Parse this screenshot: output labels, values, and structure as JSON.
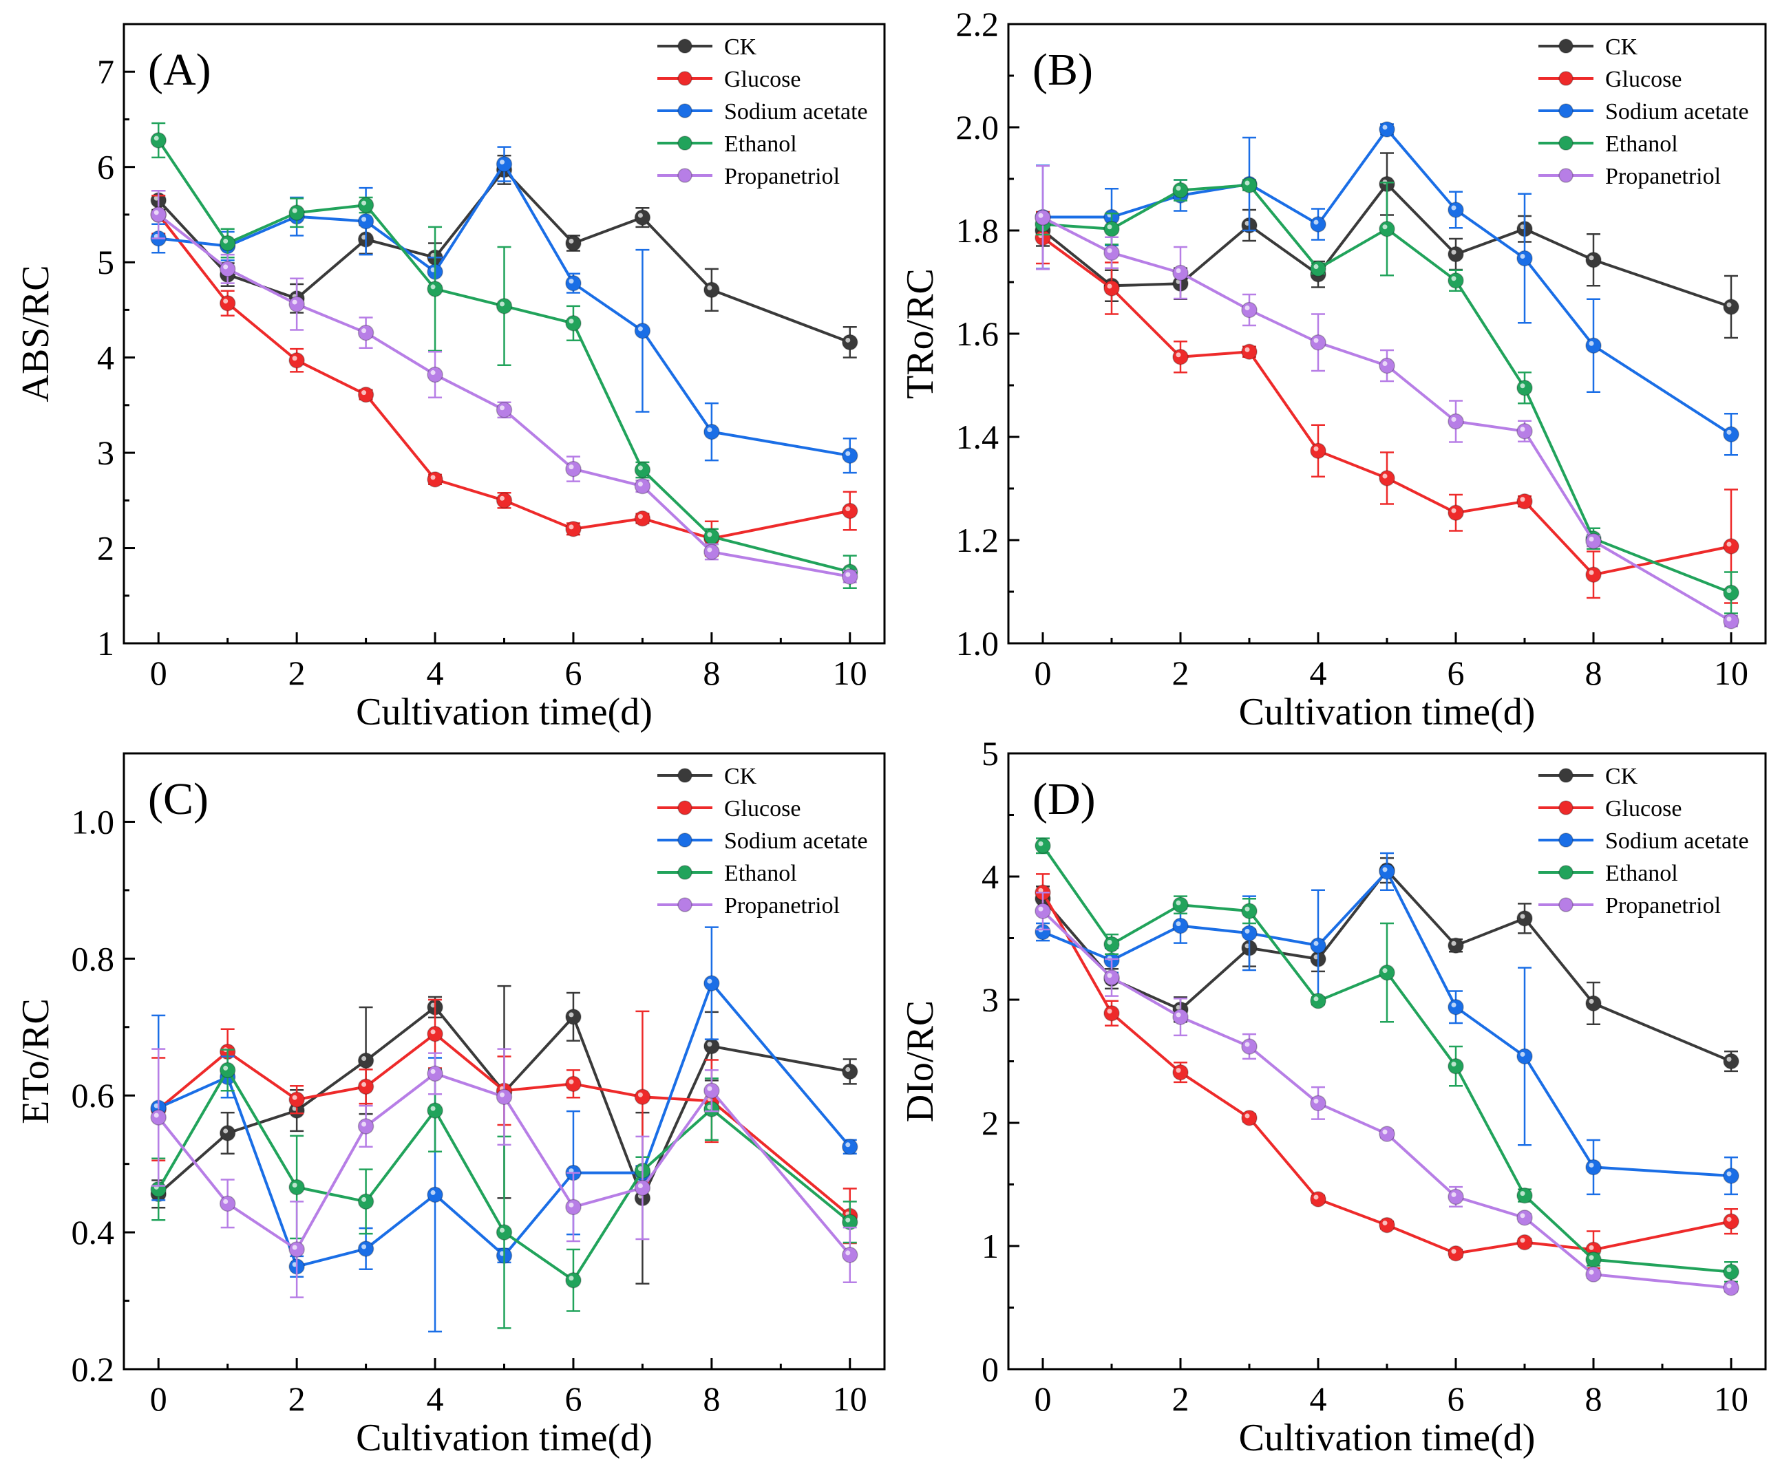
{
  "figure": {
    "series_colors": {
      "CK": "#3a3a3a",
      "Glucose": "#ee2a2a",
      "Sodium acetate": "#1a6ee6",
      "Ethanol": "#21a35b",
      "Propanetriol": "#b77ee6"
    }
  },
  "chart_data": [
    {
      "type": "line",
      "panel": "(A)",
      "xlabel": "Cultivation time(d)",
      "ylabel": "ABS/RC",
      "xlim": [
        -0.5,
        10.5
      ],
      "ylim": [
        1,
        7.5
      ],
      "xticks": [
        0,
        2,
        4,
        6,
        8,
        10
      ],
      "yticks": [
        1,
        2,
        3,
        4,
        5,
        6,
        7
      ],
      "legend": "top-right",
      "x": [
        0,
        1,
        2,
        3,
        4,
        5,
        6,
        7,
        8,
        10
      ],
      "series": [
        {
          "name": "CK",
          "values": [
            5.65,
            4.87,
            4.62,
            5.24,
            5.05,
            5.97,
            5.2,
            5.47,
            4.71,
            4.16
          ],
          "errors": [
            0.1,
            0.12,
            0.15,
            0.15,
            0.15,
            0.15,
            0.08,
            0.1,
            0.22,
            0.16
          ]
        },
        {
          "name": "Glucose",
          "values": [
            5.5,
            4.57,
            3.97,
            3.61,
            2.72,
            2.5,
            2.2,
            2.31,
            2.1,
            2.39
          ],
          "errors": [
            0.2,
            0.13,
            0.12,
            0.05,
            0.05,
            0.08,
            0.06,
            0.05,
            0.18,
            0.2
          ]
        },
        {
          "name": "Sodium acetate",
          "values": [
            5.25,
            5.17,
            5.48,
            5.43,
            4.9,
            6.03,
            4.78,
            4.28,
            3.22,
            2.97
          ],
          "errors": [
            0.15,
            0.15,
            0.2,
            0.35,
            0.15,
            0.18,
            0.1,
            0.85,
            0.3,
            0.18
          ]
        },
        {
          "name": "Ethanol",
          "values": [
            6.28,
            5.2,
            5.52,
            5.6,
            4.72,
            4.54,
            4.36,
            2.82,
            2.12,
            1.75
          ],
          "errors": [
            0.18,
            0.15,
            0.15,
            0.08,
            0.65,
            0.62,
            0.18,
            0.08,
            0.08,
            0.17
          ]
        },
        {
          "name": "Propanetriol",
          "values": [
            5.5,
            4.93,
            4.56,
            4.26,
            3.82,
            3.45,
            2.83,
            2.65,
            1.96,
            1.7
          ],
          "errors": [
            0.25,
            0.15,
            0.27,
            0.16,
            0.24,
            0.08,
            0.13,
            0.06,
            0.08,
            0.06
          ]
        }
      ]
    },
    {
      "type": "line",
      "panel": "(B)",
      "xlabel": "Cultivation time(d)",
      "ylabel": "TRo/RC",
      "xlim": [
        -0.5,
        10.5
      ],
      "ylim": [
        1.0,
        2.2
      ],
      "xticks": [
        0,
        2,
        4,
        6,
        8,
        10
      ],
      "yticks": [
        1.0,
        1.2,
        1.4,
        1.6,
        1.8,
        2.0,
        2.2
      ],
      "legend": "top-right",
      "x": [
        0,
        1,
        2,
        3,
        4,
        5,
        6,
        7,
        8,
        10
      ],
      "series": [
        {
          "name": "CK",
          "values": [
            1.8,
            1.693,
            1.697,
            1.81,
            1.715,
            1.89,
            1.754,
            1.803,
            1.743,
            1.652
          ],
          "errors": [
            0.03,
            0.03,
            0.03,
            0.03,
            0.025,
            0.06,
            0.03,
            0.025,
            0.05,
            0.06
          ]
        },
        {
          "name": "Glucose",
          "values": [
            1.786,
            1.688,
            1.555,
            1.565,
            1.373,
            1.32,
            1.253,
            1.275,
            1.133,
            1.188
          ],
          "errors": [
            0.05,
            0.05,
            0.03,
            0.01,
            0.05,
            0.05,
            0.035,
            0.01,
            0.045,
            0.11
          ]
        },
        {
          "name": "Sodium acetate",
          "values": [
            1.826,
            1.826,
            1.868,
            1.89,
            1.812,
            1.996,
            1.84,
            1.746,
            1.577,
            1.405
          ],
          "errors": [
            0.1,
            0.055,
            0.03,
            0.09,
            0.03,
            0.01,
            0.035,
            0.125,
            0.09,
            0.04
          ]
        },
        {
          "name": "Ethanol",
          "values": [
            1.812,
            1.803,
            1.878,
            1.888,
            1.726,
            1.803,
            1.703,
            1.495,
            1.203,
            1.098
          ],
          "errors": [
            0.02,
            0.03,
            0.02,
            0.01,
            0.01,
            0.09,
            0.02,
            0.03,
            0.02,
            0.04
          ]
        },
        {
          "name": "Propanetriol",
          "values": [
            1.825,
            1.757,
            1.718,
            1.646,
            1.583,
            1.538,
            1.43,
            1.411,
            1.198,
            1.043
          ],
          "errors": [
            0.1,
            0.03,
            0.05,
            0.03,
            0.055,
            0.03,
            0.04,
            0.02,
            0.01,
            0.01
          ]
        }
      ]
    },
    {
      "type": "line",
      "panel": "(C)",
      "xlabel": "Cultivation time(d)",
      "ylabel": "ETo/RC",
      "xlim": [
        -0.5,
        10.5
      ],
      "ylim": [
        0.2,
        1.1
      ],
      "xticks": [
        0,
        2,
        4,
        6,
        8,
        10
      ],
      "yticks": [
        0.2,
        0.4,
        0.6,
        0.8,
        1.0
      ],
      "legend": "top-right",
      "x": [
        0,
        1,
        2,
        3,
        4,
        5,
        6,
        7,
        8,
        10
      ],
      "series": [
        {
          "name": "CK",
          "values": [
            0.456,
            0.545,
            0.578,
            0.651,
            0.729,
            0.605,
            0.715,
            0.45,
            0.672,
            0.635
          ],
          "errors": [
            0.02,
            0.03,
            0.03,
            0.078,
            0.015,
            0.155,
            0.035,
            0.125,
            0.05,
            0.018
          ]
        },
        {
          "name": "Glucose",
          "values": [
            0.58,
            0.664,
            0.594,
            0.613,
            0.69,
            0.607,
            0.617,
            0.598,
            0.592,
            0.424
          ],
          "errors": [
            0.075,
            0.033,
            0.02,
            0.025,
            0.05,
            0.05,
            0.02,
            0.125,
            0.06,
            0.04
          ]
        },
        {
          "name": "Sodium acetate",
          "values": [
            0.582,
            0.627,
            0.35,
            0.376,
            0.455,
            0.366,
            0.487,
            0.487,
            0.764,
            0.525
          ],
          "errors": [
            0.135,
            0.03,
            0.015,
            0.03,
            0.2,
            0.01,
            0.09,
            0.01,
            0.082,
            0.01
          ]
        },
        {
          "name": "Ethanol",
          "values": [
            0.463,
            0.637,
            0.466,
            0.445,
            0.578,
            0.4,
            0.33,
            0.49,
            0.58,
            0.415
          ],
          "errors": [
            0.045,
            0.03,
            0.075,
            0.047,
            0.06,
            0.14,
            0.045,
            0.02,
            0.045,
            0.03
          ]
        },
        {
          "name": "Propanetriol",
          "values": [
            0.568,
            0.442,
            0.375,
            0.555,
            0.632,
            0.598,
            0.437,
            0.465,
            0.607,
            0.367
          ],
          "errors": [
            0.1,
            0.035,
            0.07,
            0.03,
            0.03,
            0.07,
            0.05,
            0.075,
            0.03,
            0.04
          ]
        }
      ]
    },
    {
      "type": "line",
      "panel": "(D)",
      "xlabel": "Cultivation time(d)",
      "ylabel": "DIo/RC",
      "xlim": [
        -0.5,
        10.5
      ],
      "ylim": [
        0,
        5
      ],
      "xticks": [
        0,
        2,
        4,
        6,
        8,
        10
      ],
      "yticks": [
        0,
        1,
        2,
        3,
        4,
        5
      ],
      "legend": "top-right",
      "x": [
        0,
        1,
        2,
        3,
        4,
        5,
        6,
        7,
        8,
        10
      ],
      "series": [
        {
          "name": "CK",
          "values": [
            3.82,
            3.17,
            2.92,
            3.42,
            3.33,
            4.05,
            3.44,
            3.66,
            2.97,
            2.5
          ],
          "errors": [
            0.1,
            0.08,
            0.1,
            0.15,
            0.1,
            0.1,
            0.05,
            0.12,
            0.17,
            0.08
          ]
        },
        {
          "name": "Glucose",
          "values": [
            3.87,
            2.89,
            2.41,
            2.04,
            1.38,
            1.17,
            0.94,
            1.03,
            0.97,
            1.2
          ],
          "errors": [
            0.15,
            0.1,
            0.08,
            0.03,
            0.03,
            0.03,
            0.03,
            0.03,
            0.15,
            0.1
          ]
        },
        {
          "name": "Sodium acetate",
          "values": [
            3.55,
            3.32,
            3.6,
            3.54,
            3.44,
            4.04,
            2.94,
            2.54,
            1.64,
            1.57
          ],
          "errors": [
            0.07,
            0.1,
            0.14,
            0.3,
            0.45,
            0.15,
            0.13,
            0.72,
            0.22,
            0.15
          ]
        },
        {
          "name": "Ethanol",
          "values": [
            4.25,
            3.45,
            3.77,
            3.72,
            2.99,
            3.22,
            2.46,
            1.41,
            0.89,
            0.79
          ],
          "errors": [
            0.06,
            0.08,
            0.07,
            0.1,
            0.03,
            0.4,
            0.16,
            0.05,
            0.05,
            0.08
          ]
        },
        {
          "name": "Propanetriol",
          "values": [
            3.72,
            3.18,
            2.86,
            2.62,
            2.16,
            1.91,
            1.4,
            1.23,
            0.77,
            0.66
          ],
          "errors": [
            0.15,
            0.15,
            0.15,
            0.1,
            0.13,
            0.03,
            0.08,
            0.03,
            0.03,
            0.03
          ]
        }
      ]
    }
  ]
}
